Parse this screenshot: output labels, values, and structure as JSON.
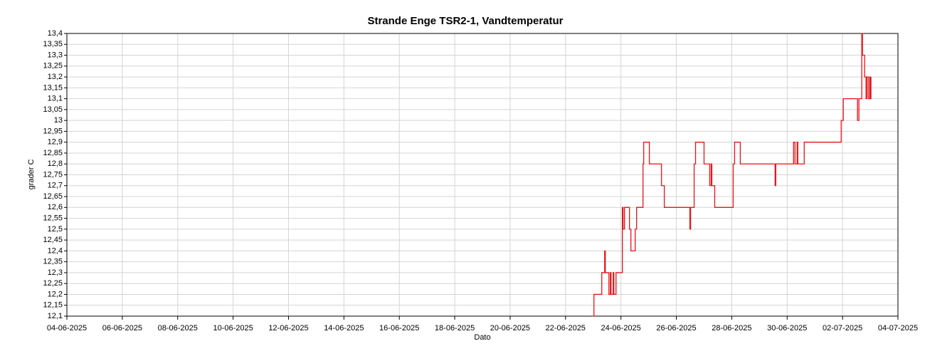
{
  "chart_data": {
    "type": "line",
    "title": "Strande Enge TSR2-1, Vandtemperatur",
    "x_label": "Dato",
    "y_label": "grader C",
    "grid": true,
    "drawstyle": "steps-post",
    "xlim": [
      "04-06-2025 00:00",
      "04-07-2025 00:00"
    ],
    "xticks": [
      "04-06-2025",
      "06-06-2025",
      "08-06-2025",
      "10-06-2025",
      "12-06-2025",
      "14-06-2025",
      "16-06-2025",
      "18-06-2025",
      "20-06-2025",
      "22-06-2025",
      "24-06-2025",
      "26-06-2025",
      "28-06-2025",
      "30-06-2025",
      "02-07-2025",
      "04-07-2025"
    ],
    "ylim": [
      12.1,
      13.4
    ],
    "yticks": [
      {
        "value": 12.1,
        "label": "12,1"
      },
      {
        "value": 12.15,
        "label": "12,15"
      },
      {
        "value": 12.2,
        "label": "12,2"
      },
      {
        "value": 12.25,
        "label": "12,25"
      },
      {
        "value": 12.3,
        "label": "12,3"
      },
      {
        "value": 12.35,
        "label": "12,35"
      },
      {
        "value": 12.4,
        "label": "12,4"
      },
      {
        "value": 12.45,
        "label": "12,45"
      },
      {
        "value": 12.5,
        "label": "12,5"
      },
      {
        "value": 12.55,
        "label": "12,55"
      },
      {
        "value": 12.6,
        "label": "12,6"
      },
      {
        "value": 12.65,
        "label": "12,65"
      },
      {
        "value": 12.7,
        "label": "12,7"
      },
      {
        "value": 12.75,
        "label": "12,75"
      },
      {
        "value": 12.8,
        "label": "12,8"
      },
      {
        "value": 12.85,
        "label": "12,85"
      },
      {
        "value": 12.9,
        "label": "12,9"
      },
      {
        "value": 12.95,
        "label": "12,95"
      },
      {
        "value": 13,
        "label": "13"
      },
      {
        "value": 13.05,
        "label": "13,05"
      },
      {
        "value": 13.1,
        "label": "13,1"
      },
      {
        "value": 13.15,
        "label": "13,15"
      },
      {
        "value": 13.2,
        "label": "13,2"
      },
      {
        "value": 13.25,
        "label": "13,25"
      },
      {
        "value": 13.3,
        "label": "13,3"
      },
      {
        "value": 13.35,
        "label": "13,35"
      },
      {
        "value": 13.4,
        "label": "13,4"
      }
    ],
    "series": [
      {
        "color": "#e8141a",
        "x": [
          "22-06-2025 23:26",
          "23-06-2025 00:37",
          "23-06-2025 07:24",
          "23-06-2025 09:52",
          "23-06-2025 10:29",
          "23-06-2025 13:34",
          "23-06-2025 14:48",
          "23-06-2025 15:25",
          "23-06-2025 17:16",
          "23-06-2025 17:53",
          "23-06-2025 19:44",
          "24-06-2025 01:14",
          "24-06-2025 01:51",
          "24-06-2025 03:05",
          "24-06-2025 07:24",
          "24-06-2025 08:38",
          "24-06-2025 12:20",
          "24-06-2025 13:34",
          "24-06-2025 19:07",
          "24-06-2025 19:44",
          "25-06-2025 00:37",
          "25-06-2025 11:06",
          "25-06-2025 13:34",
          "26-06-2025 11:43",
          "26-06-2025 12:20",
          "26-06-2025 15:25",
          "26-06-2025 16:39",
          "27-06-2025 00:00",
          "27-06-2025 04:56",
          "27-06-2025 06:10",
          "27-06-2025 06:47",
          "27-06-2025 09:15",
          "28-06-2025 01:14",
          "28-06-2025 02:28",
          "28-06-2025 07:24",
          "29-06-2025 13:34",
          "29-06-2025 14:11",
          "30-06-2025 05:33",
          "30-06-2025 06:47",
          "30-06-2025 08:38",
          "30-06-2025 09:15",
          "30-06-2025 14:48",
          "01-07-2025 22:49",
          "02-07-2025 00:37",
          "02-07-2025 12:57",
          "02-07-2025 14:11",
          "02-07-2025 16:39",
          "02-07-2025 17:16",
          "02-07-2025 19:07",
          "02-07-2025 20:21",
          "02-07-2025 20:58",
          "02-07-2025 22:12",
          "02-07-2025 23:26",
          "03-07-2025 00:00",
          "03-07-2025 00:37"
        ],
        "values": [
          12.1,
          12.2,
          12.3,
          12.4,
          12.3,
          12.2,
          12.3,
          12.2,
          12.3,
          12.2,
          12.3,
          12.6,
          12.5,
          12.6,
          12.5,
          12.4,
          12.5,
          12.6,
          12.8,
          12.9,
          12.8,
          12.7,
          12.6,
          12.5,
          12.6,
          12.8,
          12.9,
          12.8,
          12.7,
          12.8,
          12.7,
          12.6,
          12.8,
          12.9,
          12.8,
          12.7,
          12.8,
          12.9,
          12.8,
          12.9,
          12.8,
          12.9,
          13,
          13.1,
          13,
          13.1,
          13.4,
          13.3,
          13.2,
          13.1,
          13.2,
          13.1,
          13.2,
          13.1,
          13.2
        ]
      }
    ]
  }
}
